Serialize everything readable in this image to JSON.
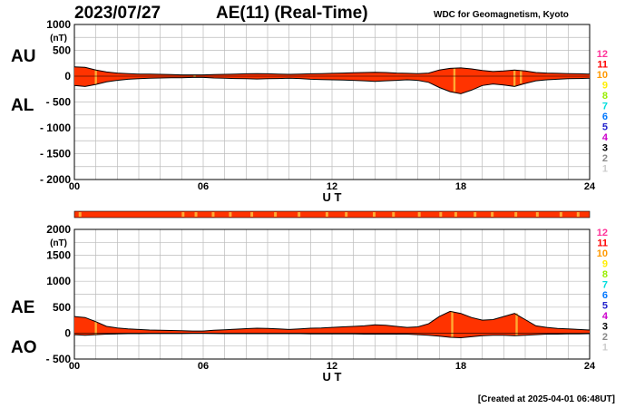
{
  "header": {
    "date": "2023/07/27",
    "title": "AE(11) (Real-Time)",
    "source": "WDC for Geomagnetism, Kyoto"
  },
  "footer": {
    "created": "[Created at 2025-04-01 06:48UT]"
  },
  "legend": {
    "stations": [
      {
        "label": "12",
        "color": "#ff3399"
      },
      {
        "label": "11",
        "color": "#ff0000"
      },
      {
        "label": "10",
        "color": "#ff9900"
      },
      {
        "label": "9",
        "color": "#ffee00"
      },
      {
        "label": "8",
        "color": "#99ee00"
      },
      {
        "label": "7",
        "color": "#00dddd"
      },
      {
        "label": "6",
        "color": "#0077ff"
      },
      {
        "label": "5",
        "color": "#2222cc"
      },
      {
        "label": "4",
        "color": "#cc00cc"
      },
      {
        "label": "3",
        "color": "#000000"
      },
      {
        "label": "2",
        "color": "#888888"
      },
      {
        "label": "1",
        "color": "#cccccc"
      }
    ]
  },
  "colors": {
    "fill": "#ff3300",
    "outline": "#000000",
    "highlight": "#ffaa33",
    "grid": "#bbbbbb"
  },
  "chart_data": [
    {
      "type": "area",
      "name": "AU/AL panel",
      "labels": {
        "upper": "AU",
        "lower": "AL"
      },
      "unit": "(nT)",
      "xlabel": "U T",
      "xlim": [
        0,
        24
      ],
      "x_ticks": [
        "00",
        "06",
        "12",
        "18",
        "24"
      ],
      "ylim": [
        -2000,
        1000
      ],
      "y_ticks": [
        "1000",
        "500",
        "0",
        "- 500",
        "- 1000",
        "- 1500",
        "- 2000"
      ],
      "grid": true,
      "hours": [
        0,
        0.5,
        1,
        1.5,
        2,
        2.5,
        3,
        3.5,
        4,
        4.5,
        5,
        5.5,
        6,
        6.5,
        7,
        7.5,
        8,
        8.5,
        9,
        9.5,
        10,
        10.5,
        11,
        11.5,
        12,
        12.5,
        13,
        13.5,
        14,
        14.5,
        15,
        15.5,
        16,
        16.5,
        17,
        17.5,
        18,
        18.5,
        19,
        19.5,
        20,
        20.5,
        21,
        21.5,
        22,
        22.5,
        23,
        23.5,
        24
      ],
      "series": [
        {
          "name": "AU",
          "values": [
            180,
            170,
            120,
            80,
            60,
            50,
            40,
            40,
            35,
            30,
            25,
            25,
            25,
            30,
            35,
            40,
            45,
            50,
            45,
            40,
            35,
            40,
            45,
            50,
            55,
            60,
            65,
            70,
            75,
            70,
            60,
            55,
            50,
            60,
            120,
            150,
            160,
            140,
            110,
            90,
            100,
            120,
            100,
            70,
            60,
            55,
            50,
            45,
            40
          ]
        },
        {
          "name": "AL",
          "values": [
            -180,
            -200,
            -160,
            -110,
            -80,
            -60,
            -50,
            -40,
            -35,
            -30,
            -30,
            -25,
            -25,
            -35,
            -40,
            -45,
            -50,
            -55,
            -50,
            -45,
            -40,
            -45,
            -60,
            -65,
            -70,
            -75,
            -80,
            -90,
            -100,
            -90,
            -80,
            -70,
            -80,
            -120,
            -220,
            -300,
            -340,
            -270,
            -180,
            -150,
            -170,
            -200,
            -140,
            -90,
            -70,
            -60,
            -50,
            -45,
            -40
          ]
        }
      ],
      "highlights_hours": [
        1.0,
        5.6,
        17.7,
        20.5,
        20.8
      ]
    },
    {
      "type": "area",
      "name": "AE/AO panel",
      "labels": {
        "upper": "AE",
        "lower": "AO"
      },
      "unit": "(nT)",
      "xlabel": "U T",
      "xlim": [
        0,
        24
      ],
      "x_ticks": [
        "00",
        "06",
        "12",
        "18",
        "24"
      ],
      "ylim": [
        -500,
        2000
      ],
      "y_ticks": [
        "2000",
        "1500",
        "1000",
        "500",
        "0",
        "- 500"
      ],
      "grid": true,
      "hours": [
        0,
        0.5,
        1,
        1.5,
        2,
        2.5,
        3,
        3.5,
        4,
        4.5,
        5,
        5.5,
        6,
        6.5,
        7,
        7.5,
        8,
        8.5,
        9,
        9.5,
        10,
        10.5,
        11,
        11.5,
        12,
        12.5,
        13,
        13.5,
        14,
        14.5,
        15,
        15.5,
        16,
        16.5,
        17,
        17.5,
        18,
        18.5,
        19,
        19.5,
        20,
        20.5,
        21,
        21.5,
        22,
        22.5,
        23,
        23.5,
        24
      ],
      "series": [
        {
          "name": "AE",
          "values": [
            320,
            300,
            220,
            130,
            100,
            80,
            70,
            60,
            55,
            50,
            45,
            40,
            40,
            55,
            65,
            75,
            85,
            95,
            90,
            80,
            70,
            80,
            95,
            100,
            110,
            120,
            130,
            140,
            160,
            150,
            130,
            110,
            120,
            180,
            320,
            420,
            380,
            300,
            250,
            260,
            320,
            380,
            260,
            140,
            110,
            90,
            80,
            70,
            60
          ]
        },
        {
          "name": "AO",
          "values": [
            -30,
            -40,
            -30,
            -20,
            -15,
            -10,
            -10,
            -8,
            -8,
            -8,
            -8,
            -5,
            -5,
            -8,
            -10,
            -10,
            -10,
            -10,
            -10,
            -10,
            -10,
            -10,
            -15,
            -15,
            -15,
            -15,
            -15,
            -20,
            -20,
            -20,
            -20,
            -20,
            -30,
            -40,
            -60,
            -80,
            -90,
            -70,
            -50,
            -40,
            -40,
            -50,
            -40,
            -30,
            -20,
            -20,
            -15,
            -15,
            -10
          ]
        }
      ],
      "highlights_hours": [
        1.0,
        17.6,
        20.6
      ]
    }
  ]
}
